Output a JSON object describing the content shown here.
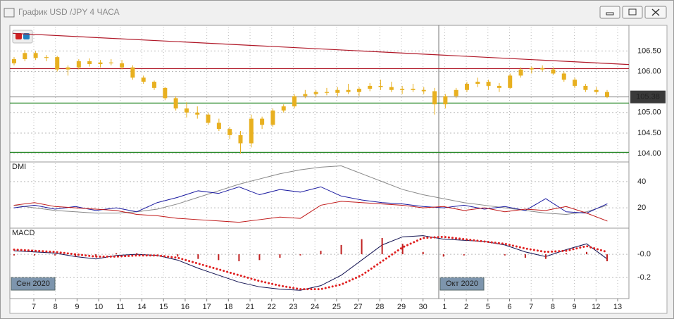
{
  "window": {
    "title": "График USD /JPY  4 ЧАСА"
  },
  "x_axis": {
    "categories": [
      "7",
      "8",
      "9",
      "10",
      "11",
      "14",
      "15",
      "16",
      "17",
      "18",
      "21",
      "22",
      "23",
      "24",
      "25",
      "27",
      "28",
      "29",
      "30",
      "1",
      "2",
      "5",
      "6",
      "7",
      "8",
      "9",
      "12",
      "13"
    ],
    "period_labels": [
      "Сен 2020",
      "Окт 2020"
    ]
  },
  "chart_data": [
    {
      "type": "candlestick",
      "color": "#e8b020",
      "ylim": [
        103.83,
        107.09
      ],
      "yticks": [
        {
          "value": 104,
          "label": "104.00"
        },
        {
          "value": 104.5,
          "label": "104.50"
        },
        {
          "value": 105,
          "label": "105.00"
        },
        {
          "value": 106,
          "label": "106.00"
        },
        {
          "value": 106.5,
          "label": "106.50"
        }
      ],
      "last_price": 105.38,
      "last_price_color": "#888888",
      "trendline": {
        "values": [
          106.93,
          106.17
        ],
        "color": "#b01828"
      },
      "levels": [
        {
          "value": 106.07,
          "color": "#b01828"
        },
        {
          "value": 105.23,
          "color": "#2a8a2a"
        },
        {
          "value": 104.03,
          "color": "#2a8a2a"
        }
      ],
      "candles": [
        [
          106.2,
          106.35,
          106.15,
          106.3
        ],
        [
          106.3,
          106.52,
          106.25,
          106.45
        ],
        [
          106.45,
          106.5,
          106.28,
          106.33
        ],
        [
          106.33,
          106.4,
          106.25,
          106.35
        ],
        [
          106.35,
          106.38,
          106.0,
          106.05
        ],
        [
          106.05,
          106.15,
          105.9,
          106.1
        ],
        [
          106.1,
          106.3,
          106.05,
          106.25
        ],
        [
          106.25,
          106.32,
          106.12,
          106.18
        ],
        [
          106.18,
          106.28,
          106.1,
          106.22
        ],
        [
          106.22,
          106.3,
          106.15,
          106.2
        ],
        [
          106.2,
          106.28,
          106.05,
          106.1
        ],
        [
          106.1,
          106.15,
          105.8,
          105.85
        ],
        [
          105.85,
          105.9,
          105.7,
          105.75
        ],
        [
          105.75,
          105.78,
          105.55,
          105.6
        ],
        [
          105.6,
          105.62,
          105.3,
          105.35
        ],
        [
          105.35,
          105.4,
          105.05,
          105.1
        ],
        [
          105.1,
          105.25,
          104.88,
          105.0
        ],
        [
          105.0,
          105.15,
          104.85,
          104.95
        ],
        [
          104.95,
          105.0,
          104.7,
          104.75
        ],
        [
          104.75,
          104.85,
          104.55,
          104.6
        ],
        [
          104.6,
          104.65,
          104.35,
          104.45
        ],
        [
          104.45,
          104.55,
          104.0,
          104.25
        ],
        [
          104.25,
          104.95,
          104.15,
          104.85
        ],
        [
          104.85,
          104.9,
          104.6,
          104.7
        ],
        [
          104.7,
          105.1,
          104.65,
          105.05
        ],
        [
          105.05,
          105.2,
          105.0,
          105.15
        ],
        [
          105.15,
          105.45,
          105.1,
          105.4
        ],
        [
          105.4,
          105.55,
          105.35,
          105.45
        ],
        [
          105.45,
          105.55,
          105.38,
          105.5
        ],
        [
          105.5,
          105.6,
          105.42,
          105.48
        ],
        [
          105.48,
          105.62,
          105.4,
          105.55
        ],
        [
          105.55,
          105.7,
          105.45,
          105.5
        ],
        [
          105.5,
          105.62,
          105.4,
          105.58
        ],
        [
          105.58,
          105.72,
          105.52,
          105.65
        ],
        [
          105.65,
          105.8,
          105.55,
          105.62
        ],
        [
          105.62,
          105.75,
          105.5,
          105.55
        ],
        [
          105.55,
          105.65,
          105.45,
          105.58
        ],
        [
          105.58,
          105.7,
          105.5,
          105.55
        ],
        [
          105.55,
          105.62,
          105.45,
          105.52
        ],
        [
          105.52,
          105.6,
          104.95,
          105.2
        ],
        [
          105.2,
          105.45,
          105.1,
          105.4
        ],
        [
          105.4,
          105.6,
          105.35,
          105.55
        ],
        [
          105.55,
          105.75,
          105.5,
          105.7
        ],
        [
          105.7,
          105.85,
          105.62,
          105.75
        ],
        [
          105.75,
          105.8,
          105.55,
          105.65
        ],
        [
          105.65,
          105.72,
          105.5,
          105.6
        ],
        [
          105.6,
          105.95,
          105.58,
          105.9
        ],
        [
          105.9,
          106.1,
          105.85,
          106.05
        ],
        [
          106.05,
          106.12,
          105.95,
          106.08
        ],
        [
          106.08,
          106.15,
          106.0,
          106.05
        ],
        [
          106.05,
          106.1,
          105.92,
          105.95
        ],
        [
          105.95,
          106.0,
          105.75,
          105.8
        ],
        [
          105.8,
          105.85,
          105.6,
          105.65
        ],
        [
          105.65,
          105.7,
          105.5,
          105.55
        ],
        [
          105.55,
          105.62,
          105.45,
          105.5
        ],
        [
          105.5,
          105.55,
          105.35,
          105.38
        ]
      ]
    },
    {
      "type": "line",
      "title": "DMI",
      "ylim": [
        5.6,
        53.9
      ],
      "yticks": [
        20,
        40
      ],
      "series": [
        {
          "color": "#888888",
          "values": [
            22,
            20,
            18,
            17,
            16,
            16,
            17,
            19,
            23,
            28,
            33,
            38,
            42,
            46,
            49,
            51,
            52,
            46,
            40,
            34,
            30,
            27,
            24,
            22,
            20,
            18,
            16,
            15,
            17,
            22
          ]
        },
        {
          "color": "#1a1aa0",
          "values": [
            20,
            22,
            19,
            21,
            18,
            20,
            17,
            24,
            28,
            33,
            31,
            36,
            30,
            34,
            32,
            36,
            29,
            26,
            24,
            23,
            21,
            20,
            22,
            19,
            21,
            18,
            27,
            17,
            16,
            23
          ]
        },
        {
          "color": "#c01818",
          "values": [
            22,
            24,
            21,
            20,
            19,
            18,
            15,
            14,
            12,
            11,
            10,
            9,
            11,
            13,
            12,
            22,
            25,
            24,
            23,
            22,
            20,
            21,
            18,
            20,
            17,
            19,
            18,
            21,
            16,
            10
          ]
        }
      ]
    },
    {
      "type": "macd",
      "title": "MACD",
      "ylim": [
        -0.369,
        0.2125
      ],
      "yticks": [
        {
          "value": 0,
          "label": "-0.0"
        },
        {
          "value": -0.2,
          "label": "-0.2"
        }
      ],
      "series": [
        {
          "color": "#101050",
          "values": [
            0.03,
            0.02,
            0.01,
            -0.02,
            -0.04,
            -0.01,
            0.0,
            -0.01,
            -0.05,
            -0.12,
            -0.18,
            -0.24,
            -0.28,
            -0.3,
            -0.31,
            -0.27,
            -0.18,
            -0.05,
            0.08,
            0.15,
            0.16,
            0.13,
            0.12,
            0.11,
            0.08,
            0.02,
            -0.02,
            0.04,
            0.09,
            -0.04
          ]
        },
        {
          "color": "#e02020",
          "style": "dotted",
          "values": [
            0.04,
            0.03,
            0.02,
            0.0,
            -0.02,
            -0.02,
            -0.01,
            -0.01,
            -0.03,
            -0.08,
            -0.13,
            -0.18,
            -0.23,
            -0.27,
            -0.3,
            -0.3,
            -0.26,
            -0.18,
            -0.06,
            0.06,
            0.14,
            0.15,
            0.13,
            0.11,
            0.09,
            0.05,
            0.02,
            0.03,
            0.07,
            0.02
          ]
        },
        {
          "color": "#c02020",
          "style": "histogram",
          "values": [
            -0.01,
            -0.01,
            -0.01,
            -0.02,
            -0.02,
            0.01,
            0.01,
            0,
            -0.02,
            -0.04,
            -0.05,
            -0.06,
            -0.05,
            -0.03,
            -0.01,
            0.03,
            0.08,
            0.13,
            0.14,
            0.09,
            0.02,
            -0.02,
            -0.01,
            0,
            -0.01,
            -0.03,
            -0.04,
            0.01,
            0.02,
            -0.06
          ]
        }
      ]
    }
  ]
}
